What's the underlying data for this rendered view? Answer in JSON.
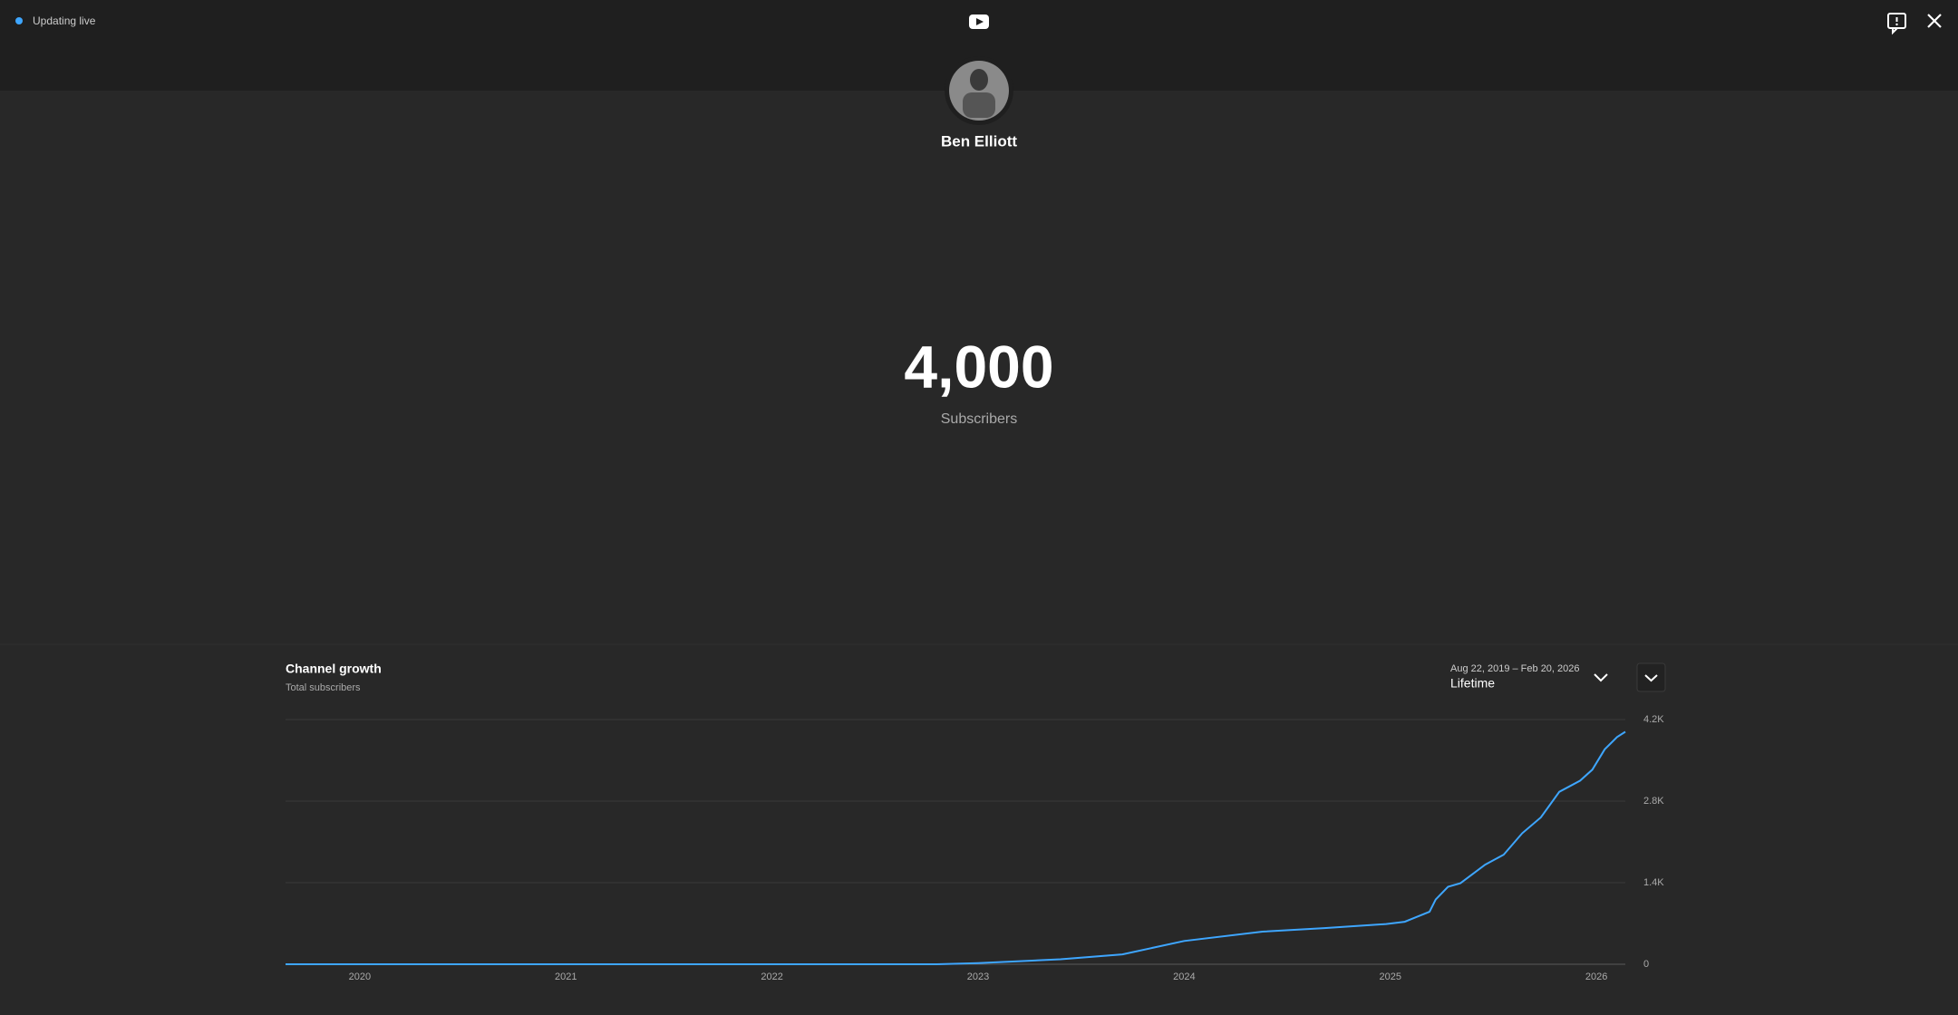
{
  "header": {
    "status": "Updating live"
  },
  "profile": {
    "name": "Ben Elliott"
  },
  "counter": {
    "value": "4,000",
    "label": "Subscribers"
  },
  "chart_data": {
    "type": "line",
    "title": "Channel growth",
    "subtitle": "Total subscribers",
    "date_range": "Aug 22, 2019 – Feb 20, 2026",
    "period": "Lifetime",
    "x": [
      2019.64,
      2022.8,
      2023.0,
      2023.4,
      2023.7,
      2024.0,
      2024.38,
      2024.68,
      2024.98,
      2025.07,
      2025.19,
      2025.22,
      2025.28,
      2025.34,
      2025.46,
      2025.55,
      2025.64,
      2025.73,
      2025.82,
      2025.92,
      2025.98,
      2026.04,
      2026.1,
      2026.14
    ],
    "values": [
      0,
      0,
      20,
      85,
      170,
      400,
      560,
      620,
      690,
      730,
      900,
      1110,
      1330,
      1390,
      1710,
      1880,
      2250,
      2520,
      2960,
      3150,
      3340,
      3690,
      3900,
      3990
    ],
    "color": "#3ea6ff",
    "xlim": [
      2019.64,
      2026.14
    ],
    "xticks": [
      2020,
      2021,
      2022,
      2023,
      2024,
      2025,
      2026
    ],
    "ylim": [
      0,
      4200
    ],
    "yticks": [
      0,
      {
        "value": 1400,
        "label": "1.4K"
      },
      {
        "value": 2800,
        "label": "2.8K"
      },
      {
        "value": 4200,
        "label": "4.2K"
      }
    ],
    "grid": true
  }
}
